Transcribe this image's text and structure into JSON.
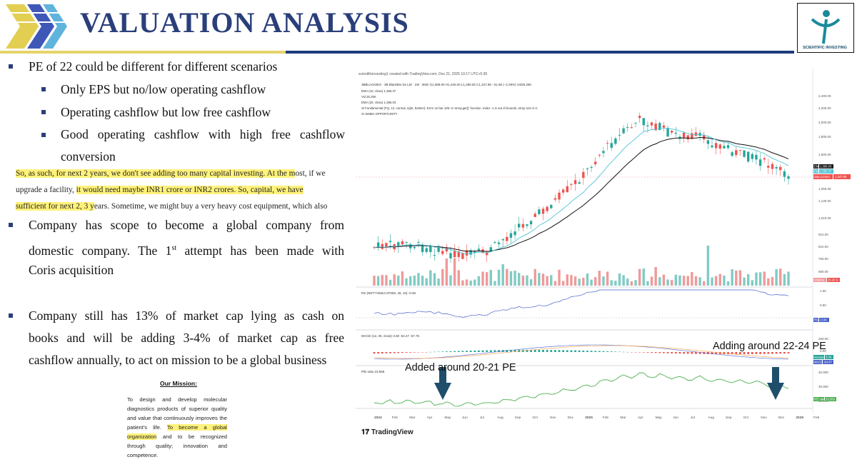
{
  "header": {
    "title": "VALUATION ANALYSIS",
    "brand": "SCIENTIFIC INVESTING",
    "colors": {
      "title": "#2a3f7a",
      "accent_yellow": "#e5d46a",
      "accent_navy": "#1d3c7b",
      "logo_teal": "#1a8a9a"
    }
  },
  "bullets": {
    "b1": "PE of 22 could be different for different scenarios",
    "sub1": "Only EPS but no/low operating cashflow",
    "sub2": "Operating cashflow but low free cashflow",
    "sub3_l1": "Good operating cashflow with high free cashflow",
    "sub3_l2": "conversion",
    "quote_l1_hl": "So, as such, for next 2 years, we don't see adding too many capital investing. At the m",
    "quote_l1_rest": "ost, if we",
    "quote_l2_pre": "upgrade a facility, ",
    "quote_l2_hl": "it would need maybe INR1 crore or INR2 crores. So, capital, we have",
    "quote_l3_hl": "sufficient for next 2, 3 y",
    "quote_l3_rest": "ears. Sometime, we might buy a very heavy cost equipment, which also",
    "b2_l1": "Company has scope to become a global company from",
    "b2_l2_a": "domestic company. The 1",
    "b2_l2_sup": "st",
    "b2_l2_b": " attempt has been made with",
    "b2_l3": "Coris acquisition",
    "b3_l1": "Company still has 13% of market cap lying as cash on",
    "b3_l2": "books and will be adding 3-4% of market cap as free",
    "b3_l3": "cashflow annually, to act on mission to be a global business"
  },
  "mission": {
    "heading": "Our Mission:",
    "text_pre": "To design  and  develop molecular diagnostics products of superior quality and value that continuously improves the patient's life. ",
    "text_hl": "To become a global organization",
    "text_post": " and to be recognized through quality; innovation and competence."
  },
  "chart": {
    "header_line": "scientificinvesting1 created with TradingView.com, Dec 21, 2025 10:17 UTC+5:30",
    "symbol_line": "3BBLACKBIO · 3B BlackBio Dx Ltd · 1W · BSE  O1,389.00 H1,440.00 L1,290.00 C1,347.85 −31.65 (−2.29%)  Vol25.25K",
    "ema1": "EMA (10, close)  1,365.37",
    "vol": "Vol  25.25K",
    "ema2": "EMA (20, close)  1,395.03",
    "si": "SI Fundamental (FQ, 12, normal, right, bottom): Error on bar 105: In 'array.get()' function. Index -1 is out of bounds, array size is 0.",
    "si2": "SI SIMBA OPPORTUNITY",
    "rs_label": "RS (NIFTYSMLCAP250, 26, 10)  -0.06",
    "macd_label": "MACD (12, 26, close)  3.30  -64.47  -67.76",
    "pe_label": "P/E ratio  23.559",
    "price_ticks": [
      "2,400.00",
      "2,200.00",
      "2,000.00",
      "1,800.00",
      "1,600.00",
      "1,250.00",
      "1,130.00",
      "1,010.00",
      "910.00",
      "810.00",
      "750.00",
      "690.00"
    ],
    "price_tags": {
      "ema20": "1,395.03",
      "ema10": "1,365.37",
      "last": "1,347.85",
      "last_sym": "3BBLACKBIO",
      "vol": "25.25 K"
    },
    "rs_ticks": [
      "1.00",
      "0.50"
    ],
    "rs_tag": "-0.06",
    "macd_ticks": [
      "200.00",
      "0.00"
    ],
    "macd_tags": [
      "3.30",
      "-64.47"
    ],
    "pe_ticks": [
      "40.000",
      "30.000",
      "20.000"
    ],
    "pe_tag": "23.559",
    "tag_names": {
      "hist": "Histogram",
      "macd": "MACD",
      "pe": "P/E ratio",
      "rs": "RS",
      "ema": "EMA",
      "vol": "Volume"
    },
    "x_ticks": [
      "2024",
      "Feb",
      "Mar",
      "Apr",
      "May",
      "Jun",
      "Jul",
      "Aug",
      "Sep",
      "Oct",
      "Nov",
      "Dec",
      "2025",
      "Feb",
      "Mar",
      "Apr",
      "May",
      "Jun",
      "Jul",
      "Aug",
      "Sep",
      "Oct",
      "Nov",
      "Dec",
      "2026",
      "Feb"
    ],
    "annotation_left": "Added around 20-21 PE",
    "annotation_right": "Adding around 22-24 PE",
    "tv_brand": "TradingView",
    "colors": {
      "up": "#26a69a",
      "down": "#ef5350",
      "ema10": "#4fc3d7",
      "ema20": "#111111",
      "pe": "#4caf50",
      "rs": "#4a63c9",
      "arrow": "#1f4e6b"
    }
  }
}
